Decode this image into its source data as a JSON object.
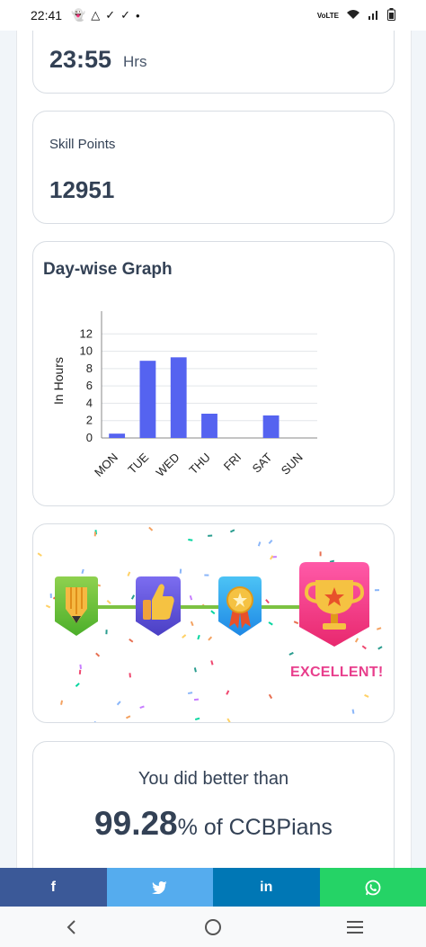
{
  "status_bar": {
    "time": "22:41",
    "left_icons": [
      "snapchat-icon",
      "drive-icon",
      "check-icon",
      "check-icon",
      "dot-icon"
    ],
    "network_text": "VoLTE"
  },
  "hours_card": {
    "value": "23:55",
    "unit": "Hrs"
  },
  "skill_card": {
    "label": "Skill Points",
    "value": "12951"
  },
  "graph_card": {
    "title": "Day-wise Graph"
  },
  "chart_data": {
    "type": "bar",
    "categories": [
      "MON",
      "TUE",
      "WED",
      "THU",
      "FRI",
      "SAT",
      "SUN"
    ],
    "values": [
      0.5,
      8.9,
      9.3,
      2.8,
      0,
      2.6,
      0
    ],
    "ylabel": "In Hours",
    "xlabel": "",
    "ylim": [
      0,
      14
    ],
    "yticks": [
      0,
      2,
      4,
      6,
      8,
      10,
      12
    ],
    "grid": true,
    "bar_color": "#5563f0"
  },
  "badges_card": {
    "badges": [
      "pencil-badge-icon",
      "thumbs-up-badge-icon",
      "medal-badge-icon",
      "trophy-badge-icon"
    ],
    "achieved_label": "EXCELLENT!",
    "line_color": "#7cc242"
  },
  "better_card": {
    "label": "You did better than",
    "percent": "99.28",
    "suffix": "% of CCBPians"
  },
  "share_bar": {
    "facebook": "f",
    "twitter": "twitter-icon",
    "linkedin": "in",
    "whatsapp": "whatsapp-icon"
  },
  "nav_bar": {
    "items": [
      "back-icon",
      "home-icon",
      "recents-icon"
    ]
  }
}
